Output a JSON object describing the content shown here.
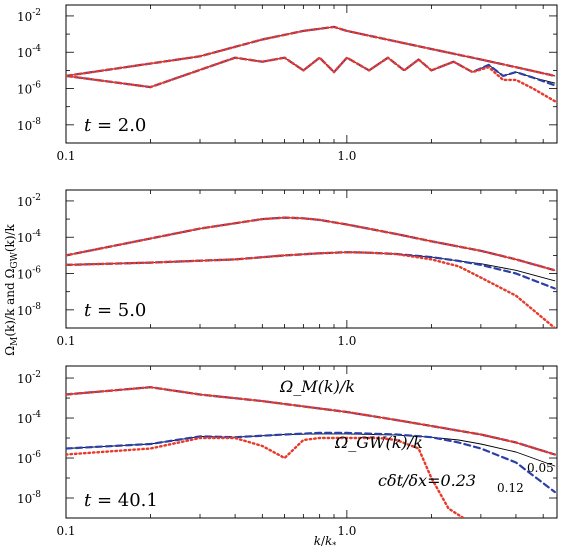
{
  "figure": {
    "ylabel": "Ω_M(k)/k  and  Ω_GW(k)/k",
    "xlabel": "k/k_*"
  },
  "colors": {
    "black": "#000000",
    "blue": "#2b3fa8",
    "red": "#e8392b",
    "annotation_red": "#e8392b",
    "annotation_blue": "#2b3fa8"
  },
  "chart_data": [
    {
      "type": "line",
      "panel_label": "t = 2.0",
      "xscale": "log",
      "yscale": "log",
      "xlim": [
        0.1,
        5.6
      ],
      "ylim": [
        1e-09,
        0.04
      ],
      "x_ticklabels": [
        "0.1",
        "1.0"
      ],
      "y_ticklabels": [
        "10^-2",
        "10^-4",
        "10^-6",
        "10^-8"
      ],
      "series": [
        {
          "style": "black-solid",
          "x": [
            0.1,
            0.3,
            0.5,
            0.7,
            0.9,
            1.0,
            2.0,
            3.0,
            4.0,
            5.5
          ],
          "y": [
            5e-06,
            6e-05,
            0.0005,
            0.0015,
            0.0025,
            0.0015,
            0.00015,
            4e-05,
            1.5e-05,
            5e-06
          ]
        },
        {
          "style": "blue-dashed",
          "x": [
            0.1,
            0.3,
            0.5,
            0.7,
            0.9,
            1.0,
            2.0,
            3.0,
            4.0,
            5.5
          ],
          "y": [
            5e-06,
            6e-05,
            0.0005,
            0.0015,
            0.0025,
            0.0015,
            0.00015,
            4e-05,
            1.5e-05,
            5e-06
          ]
        },
        {
          "style": "red-dotted",
          "x": [
            0.1,
            0.3,
            0.5,
            0.7,
            0.9,
            1.0,
            2.0,
            3.0,
            4.0,
            5.5
          ],
          "y": [
            5e-06,
            6e-05,
            0.0005,
            0.0015,
            0.0025,
            0.0015,
            0.00015,
            4e-05,
            1.5e-05,
            5e-06
          ]
        },
        {
          "style": "black-solid",
          "x": [
            0.1,
            0.2,
            0.4,
            0.5,
            0.6,
            0.7,
            0.8,
            0.9,
            1.0,
            1.2,
            1.4,
            1.6,
            1.8,
            2.0,
            2.4,
            2.8,
            3.2,
            3.6,
            4.0,
            4.6,
            5.5
          ],
          "y": [
            5e-06,
            1.2e-06,
            5e-05,
            3e-05,
            5e-05,
            1e-05,
            5e-05,
            8e-06,
            5e-05,
            1e-05,
            5e-05,
            1e-05,
            4e-05,
            1e-05,
            3e-05,
            8e-06,
            2e-05,
            5e-06,
            8e-06,
            4e-06,
            2e-06
          ]
        },
        {
          "style": "blue-dashed",
          "x": [
            0.1,
            0.2,
            0.4,
            0.5,
            0.6,
            0.7,
            0.8,
            0.9,
            1.0,
            1.2,
            1.4,
            1.6,
            1.8,
            2.0,
            2.4,
            2.8,
            3.2,
            3.6,
            4.0,
            4.6,
            5.5
          ],
          "y": [
            5e-06,
            1.2e-06,
            5e-05,
            3e-05,
            5e-05,
            1e-05,
            5e-05,
            8e-06,
            5e-05,
            1e-05,
            5e-05,
            1e-05,
            4e-05,
            1e-05,
            3e-05,
            8e-06,
            2e-05,
            5e-06,
            8e-06,
            4e-06,
            1.5e-06
          ]
        },
        {
          "style": "red-dotted",
          "x": [
            0.1,
            0.2,
            0.4,
            0.5,
            0.6,
            0.7,
            0.8,
            0.9,
            1.0,
            1.2,
            1.4,
            1.6,
            1.8,
            2.0,
            2.4,
            2.8,
            3.2,
            3.6,
            4.0,
            4.6,
            5.5
          ],
          "y": [
            5e-06,
            1.2e-06,
            5e-05,
            3e-05,
            5e-05,
            1e-05,
            5e-05,
            8e-06,
            5e-05,
            1e-05,
            5e-05,
            1e-05,
            4e-05,
            1e-05,
            3e-05,
            8e-06,
            1.5e-05,
            3e-06,
            3e-06,
            1e-06,
            2e-07
          ]
        }
      ]
    },
    {
      "type": "line",
      "panel_label": "t = 5.0",
      "xscale": "log",
      "yscale": "log",
      "xlim": [
        0.1,
        5.6
      ],
      "ylim": [
        1e-09,
        0.04
      ],
      "x_ticklabels": [
        "0.1",
        "1.0"
      ],
      "y_ticklabels": [
        "10^-2",
        "10^-4",
        "10^-6",
        "10^-8"
      ],
      "series": [
        {
          "style": "black-solid",
          "x": [
            0.1,
            0.3,
            0.5,
            0.6,
            0.7,
            0.8,
            1.0,
            1.5,
            2.0,
            3.0,
            4.0,
            5.5
          ],
          "y": [
            1e-05,
            0.0003,
            0.001,
            0.0012,
            0.0011,
            0.0009,
            0.0005,
            0.00015,
            6e-05,
            1.8e-05,
            6e-06,
            1.5e-06
          ]
        },
        {
          "style": "blue-dashed",
          "x": [
            0.1,
            0.3,
            0.5,
            0.6,
            0.7,
            0.8,
            1.0,
            1.5,
            2.0,
            3.0,
            4.0,
            5.5
          ],
          "y": [
            1e-05,
            0.0003,
            0.001,
            0.0012,
            0.0011,
            0.0009,
            0.0005,
            0.00015,
            6e-05,
            1.8e-05,
            6e-06,
            1.5e-06
          ]
        },
        {
          "style": "red-dotted",
          "x": [
            0.1,
            0.3,
            0.5,
            0.6,
            0.7,
            0.8,
            1.0,
            1.5,
            2.0,
            3.0,
            4.0,
            5.5
          ],
          "y": [
            1e-05,
            0.0003,
            0.001,
            0.0012,
            0.0011,
            0.0009,
            0.0005,
            0.00015,
            6e-05,
            1.8e-05,
            6e-06,
            1.5e-06
          ]
        },
        {
          "style": "black-solid",
          "x": [
            0.1,
            0.2,
            0.4,
            0.6,
            0.8,
            1.0,
            1.2,
            1.5,
            2.0,
            2.5,
            3.0,
            4.0,
            5.5
          ],
          "y": [
            3e-06,
            4e-06,
            6e-06,
            1e-05,
            1.3e-05,
            1.5e-05,
            1.4e-05,
            1.2e-05,
            8e-06,
            5e-06,
            3.5e-06,
            1.5e-06,
            4e-07
          ]
        },
        {
          "style": "blue-dashed",
          "x": [
            0.1,
            0.2,
            0.4,
            0.6,
            0.8,
            1.0,
            1.2,
            1.5,
            2.0,
            2.5,
            3.0,
            4.0,
            5.5
          ],
          "y": [
            3e-06,
            4e-06,
            6e-06,
            1e-05,
            1.3e-05,
            1.5e-05,
            1.4e-05,
            1.2e-05,
            8e-06,
            5e-06,
            3e-06,
            1e-06,
            1.5e-07
          ]
        },
        {
          "style": "red-dotted",
          "x": [
            0.1,
            0.2,
            0.4,
            0.6,
            0.8,
            1.0,
            1.2,
            1.5,
            2.0,
            2.5,
            3.0,
            4.0,
            5.5
          ],
          "y": [
            3e-06,
            4e-06,
            6e-06,
            1e-05,
            1.3e-05,
            1.5e-05,
            1.4e-05,
            1.2e-05,
            6e-06,
            2.5e-06,
            6e-07,
            6e-08,
            1e-09
          ]
        }
      ]
    },
    {
      "type": "line",
      "panel_label": "t = 40.1",
      "xscale": "log",
      "yscale": "log",
      "xlim": [
        0.1,
        5.6
      ],
      "ylim": [
        1e-09,
        0.04
      ],
      "x_ticklabels": [
        "0.1",
        "1.0"
      ],
      "y_ticklabels": [
        "10^-2",
        "10^-4",
        "10^-6",
        "10^-8"
      ],
      "annotations": [
        {
          "text": "Ω_M(k)/k"
        },
        {
          "text": "Ω_GW(k)/k"
        },
        {
          "text": "cδt/δx=0.23",
          "color": "red"
        },
        {
          "text": "0.12",
          "color": "blue"
        },
        {
          "text": "0.05",
          "color": "black"
        }
      ],
      "series": [
        {
          "style": "black-solid",
          "x": [
            0.1,
            0.2,
            0.3,
            0.5,
            0.8,
            1.0,
            1.5,
            2.0,
            3.0,
            4.0,
            5.5
          ],
          "y": [
            0.0015,
            0.0035,
            0.0015,
            0.0007,
            0.0003,
            0.0002,
            8e-05,
            4e-05,
            1.5e-05,
            6e-06,
            1.5e-06
          ]
        },
        {
          "style": "blue-dashed",
          "x": [
            0.1,
            0.2,
            0.3,
            0.5,
            0.8,
            1.0,
            1.5,
            2.0,
            3.0,
            4.0,
            5.5
          ],
          "y": [
            0.0015,
            0.0035,
            0.0015,
            0.0007,
            0.0003,
            0.0002,
            8e-05,
            4e-05,
            1.5e-05,
            6e-06,
            1.5e-06
          ]
        },
        {
          "style": "red-dotted",
          "x": [
            0.1,
            0.2,
            0.3,
            0.5,
            0.8,
            1.0,
            1.5,
            2.0,
            3.0,
            4.0,
            5.5
          ],
          "y": [
            0.0015,
            0.0035,
            0.0015,
            0.0007,
            0.0003,
            0.0002,
            8e-05,
            4e-05,
            1.5e-05,
            6e-06,
            1.5e-06
          ]
        },
        {
          "style": "black-solid",
          "x": [
            0.1,
            0.2,
            0.3,
            0.4,
            0.6,
            0.8,
            1.0,
            1.5,
            2.0,
            2.5,
            3.0,
            4.0,
            5.5
          ],
          "y": [
            3e-06,
            5e-06,
            1.2e-05,
            1.1e-05,
            1.5e-05,
            1.6e-05,
            1.6e-05,
            1.4e-05,
            1.1e-05,
            8e-06,
            5e-06,
            2e-06,
            4e-07
          ]
        },
        {
          "style": "blue-dashed",
          "x": [
            0.1,
            0.2,
            0.3,
            0.4,
            0.6,
            0.8,
            1.0,
            1.5,
            2.0,
            2.5,
            3.0,
            4.0,
            5.5
          ],
          "y": [
            3e-06,
            5e-06,
            1.2e-05,
            1.1e-05,
            1.5e-05,
            1.8e-05,
            1.8e-05,
            1.5e-05,
            1.1e-05,
            6e-06,
            3e-06,
            6e-07,
            2e-08
          ]
        },
        {
          "style": "red-dotted",
          "x": [
            0.1,
            0.2,
            0.3,
            0.4,
            0.5,
            0.6,
            0.7,
            0.8,
            1.0,
            1.3,
            1.5,
            1.8,
            2.0,
            2.3,
            2.6
          ],
          "y": [
            1.5e-06,
            3e-06,
            1e-05,
            1e-05,
            4e-06,
            1e-06,
            8e-06,
            1e-05,
            1e-05,
            1e-05,
            8e-06,
            3e-06,
            1e-07,
            3e-09,
            1e-09
          ]
        }
      ]
    }
  ]
}
